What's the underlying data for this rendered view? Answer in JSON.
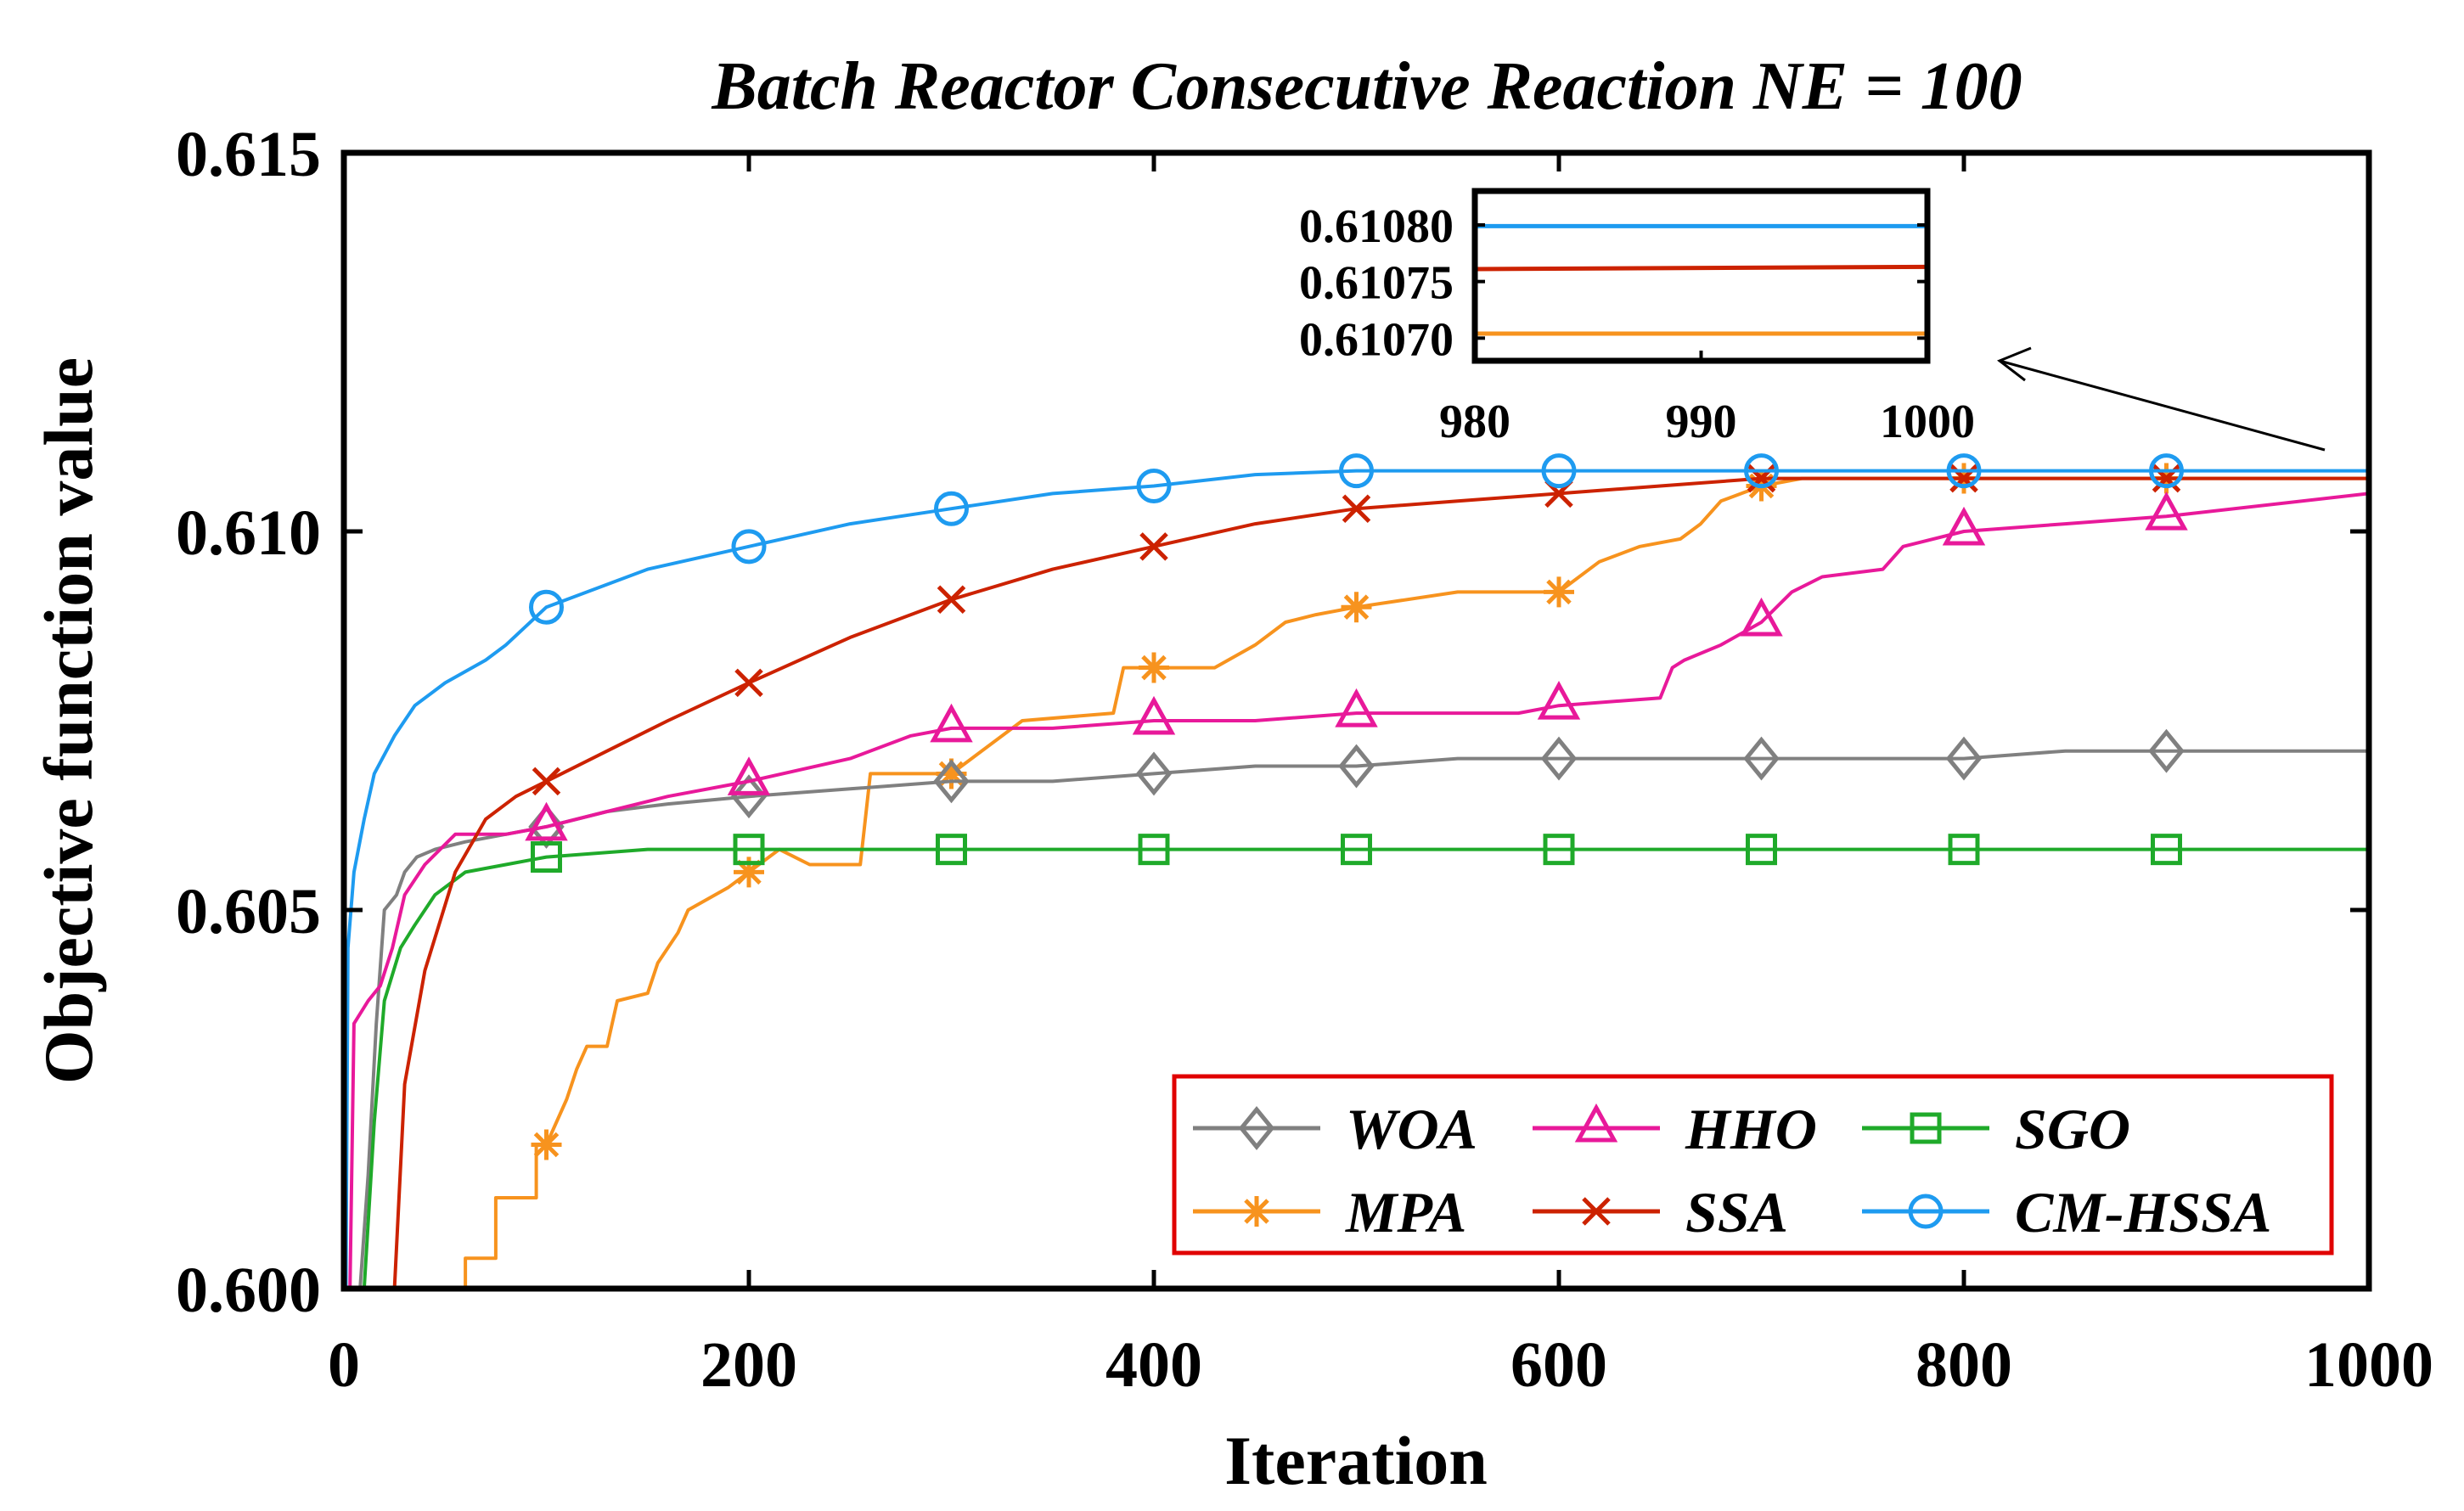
{
  "chart_data": {
    "type": "line",
    "title": "Batch Reactor Consecutive Reaction NE = 100",
    "xlabel": "Iteration",
    "ylabel": "Objective function value",
    "xlim": [
      0,
      1000
    ],
    "ylim": [
      0.6,
      0.615
    ],
    "xticks": [
      0,
      200,
      400,
      600,
      800,
      1000
    ],
    "xtick_labels": [
      "0",
      "200",
      "400",
      "600",
      "800",
      "1000"
    ],
    "yticks": [
      0.6,
      0.605,
      0.61,
      0.615
    ],
    "ytick_labels": [
      "0.600",
      "0.605",
      "0.610",
      "0.615"
    ],
    "legend_position": "bottom-right",
    "series": [
      {
        "name": "WOA",
        "color": "#808080",
        "marker": "diamond",
        "points": [
          [
            8,
            0.6
          ],
          [
            12,
            0.6015
          ],
          [
            16,
            0.6035
          ],
          [
            20,
            0.605
          ],
          [
            26,
            0.6052
          ],
          [
            30,
            0.6055
          ],
          [
            36,
            0.6057
          ],
          [
            45,
            0.6058
          ],
          [
            60,
            0.6059
          ],
          [
            80,
            0.606
          ],
          [
            100,
            0.6061
          ],
          [
            130,
            0.6063
          ],
          [
            160,
            0.6064
          ],
          [
            200,
            0.6065
          ],
          [
            250,
            0.6066
          ],
          [
            300,
            0.6067
          ],
          [
            350,
            0.6067
          ],
          [
            400,
            0.6068
          ],
          [
            450,
            0.6069
          ],
          [
            500,
            0.6069
          ],
          [
            550,
            0.607
          ],
          [
            600,
            0.607
          ],
          [
            700,
            0.607
          ],
          [
            800,
            0.607
          ],
          [
            850,
            0.6071
          ],
          [
            900,
            0.6071
          ],
          [
            1000,
            0.6071
          ]
        ],
        "marker_x": [
          100,
          200,
          300,
          400,
          500,
          600,
          700,
          800,
          900
        ]
      },
      {
        "name": "HHO",
        "color": "#E8199A",
        "marker": "triangle",
        "points": [
          [
            3,
            0.6
          ],
          [
            5,
            0.6035
          ],
          [
            12,
            0.6038
          ],
          [
            18,
            0.604
          ],
          [
            24,
            0.6045
          ],
          [
            30,
            0.6052
          ],
          [
            40,
            0.6056
          ],
          [
            55,
            0.606
          ],
          [
            80,
            0.606
          ],
          [
            100,
            0.6061
          ],
          [
            130,
            0.6063
          ],
          [
            160,
            0.6065
          ],
          [
            200,
            0.6067
          ],
          [
            250,
            0.607
          ],
          [
            280,
            0.6073
          ],
          [
            300,
            0.6074
          ],
          [
            350,
            0.6074
          ],
          [
            400,
            0.6075
          ],
          [
            450,
            0.6075
          ],
          [
            500,
            0.6076
          ],
          [
            580,
            0.6076
          ],
          [
            600,
            0.6077
          ],
          [
            650,
            0.6078
          ],
          [
            656,
            0.6082
          ],
          [
            662,
            0.6083
          ],
          [
            680,
            0.6085
          ],
          [
            700,
            0.6088
          ],
          [
            715,
            0.6092
          ],
          [
            730,
            0.6094
          ],
          [
            760,
            0.6095
          ],
          [
            770,
            0.6098
          ],
          [
            800,
            0.61
          ],
          [
            850,
            0.6101
          ],
          [
            900,
            0.6102
          ],
          [
            1000,
            0.6105
          ]
        ],
        "marker_x": [
          100,
          200,
          300,
          400,
          500,
          600,
          700,
          800,
          900
        ]
      },
      {
        "name": "SGO",
        "color": "#1FAA2A",
        "marker": "square",
        "points": [
          [
            10,
            0.6
          ],
          [
            15,
            0.6022
          ],
          [
            20,
            0.6038
          ],
          [
            28,
            0.6045
          ],
          [
            35,
            0.6048
          ],
          [
            45,
            0.6052
          ],
          [
            60,
            0.6055
          ],
          [
            80,
            0.6056
          ],
          [
            100,
            0.6057
          ],
          [
            150,
            0.6058
          ],
          [
            200,
            0.6058
          ],
          [
            300,
            0.6058
          ],
          [
            1000,
            0.6058
          ]
        ],
        "marker_x": [
          100,
          200,
          300,
          400,
          500,
          600,
          700,
          800,
          900
        ]
      },
      {
        "name": "MPA",
        "color": "#F7931E",
        "marker": "asterisk",
        "points": [
          [
            50,
            0.6
          ],
          [
            60,
            0.6
          ],
          [
            60,
            0.6004
          ],
          [
            75,
            0.6004
          ],
          [
            75,
            0.6012
          ],
          [
            95,
            0.6012
          ],
          [
            95,
            0.6019
          ],
          [
            100,
            0.6019
          ],
          [
            110,
            0.6025
          ],
          [
            115,
            0.6029
          ],
          [
            120,
            0.6032
          ],
          [
            130,
            0.6032
          ],
          [
            135,
            0.6038
          ],
          [
            150,
            0.6039
          ],
          [
            155,
            0.6043
          ],
          [
            165,
            0.6047
          ],
          [
            170,
            0.605
          ],
          [
            190,
            0.6053
          ],
          [
            200,
            0.6055
          ],
          [
            215,
            0.6058
          ],
          [
            230,
            0.6056
          ],
          [
            255,
            0.6056
          ],
          [
            260,
            0.6068
          ],
          [
            300,
            0.6068
          ],
          [
            335,
            0.6075
          ],
          [
            380,
            0.6076
          ],
          [
            385,
            0.6082
          ],
          [
            430,
            0.6082
          ],
          [
            450,
            0.6085
          ],
          [
            465,
            0.6088
          ],
          [
            480,
            0.6089
          ],
          [
            500,
            0.609
          ],
          [
            550,
            0.6092
          ],
          [
            600,
            0.6092
          ],
          [
            620,
            0.6096
          ],
          [
            640,
            0.6098
          ],
          [
            660,
            0.6099
          ],
          [
            670,
            0.6101
          ],
          [
            680,
            0.6104
          ],
          [
            700,
            0.6106
          ],
          [
            720,
            0.6107
          ],
          [
            750,
            0.6107
          ],
          [
            800,
            0.6107
          ],
          [
            1000,
            0.6107
          ]
        ],
        "marker_x": [
          100,
          200,
          300,
          400,
          500,
          600,
          700,
          800,
          900
        ]
      },
      {
        "name": "SSA",
        "color": "#CC2200",
        "marker": "x",
        "points": [
          [
            25,
            0.6
          ],
          [
            30,
            0.6027
          ],
          [
            40,
            0.6042
          ],
          [
            55,
            0.6055
          ],
          [
            70,
            0.6062
          ],
          [
            85,
            0.6065
          ],
          [
            100,
            0.6067
          ],
          [
            130,
            0.6071
          ],
          [
            160,
            0.6075
          ],
          [
            200,
            0.608
          ],
          [
            250,
            0.6086
          ],
          [
            300,
            0.6091
          ],
          [
            350,
            0.6095
          ],
          [
            400,
            0.6098
          ],
          [
            450,
            0.6101
          ],
          [
            500,
            0.6103
          ],
          [
            550,
            0.6104
          ],
          [
            600,
            0.6105
          ],
          [
            650,
            0.6106
          ],
          [
            700,
            0.6107
          ],
          [
            800,
            0.6107
          ],
          [
            1000,
            0.6107
          ]
        ],
        "marker_x": [
          100,
          200,
          300,
          400,
          500,
          600,
          700,
          800,
          900
        ]
      },
      {
        "name": "CM-HSSA",
        "color": "#1E9BF0",
        "marker": "circle",
        "points": [
          [
            1,
            0.6
          ],
          [
            2,
            0.6045
          ],
          [
            5,
            0.6055
          ],
          [
            10,
            0.6062
          ],
          [
            15,
            0.6068
          ],
          [
            25,
            0.6073
          ],
          [
            35,
            0.6077
          ],
          [
            50,
            0.608
          ],
          [
            70,
            0.6083
          ],
          [
            80,
            0.6085
          ],
          [
            100,
            0.609
          ],
          [
            150,
            0.6095
          ],
          [
            200,
            0.6098
          ],
          [
            250,
            0.6101
          ],
          [
            300,
            0.6103
          ],
          [
            350,
            0.6105
          ],
          [
            400,
            0.6106
          ],
          [
            450,
            0.61075
          ],
          [
            500,
            0.6108
          ],
          [
            600,
            0.6108
          ],
          [
            700,
            0.6108
          ],
          [
            800,
            0.6108
          ],
          [
            1000,
            0.6108
          ]
        ],
        "marker_x": [
          100,
          200,
          300,
          400,
          500,
          600,
          700,
          800,
          900
        ]
      }
    ],
    "inset": {
      "xlim": [
        980,
        1000
      ],
      "ylim": [
        0.61068,
        0.61083
      ],
      "xticks": [
        980,
        990,
        1000
      ],
      "xtick_labels": [
        "980",
        "990",
        "1000"
      ],
      "yticks": [
        0.6107,
        0.61075,
        0.6108
      ],
      "ytick_labels": [
        "0.61070",
        "0.61075",
        "0.61080"
      ],
      "series": [
        {
          "name": "CM-HSSA",
          "color": "#1E9BF0",
          "y": 0.610799
        },
        {
          "name": "SSA",
          "color": "#CC2200",
          "y0": 0.610761,
          "y1": 0.610763
        },
        {
          "name": "MPA",
          "color": "#F7931E",
          "y": 0.610704
        }
      ]
    }
  }
}
